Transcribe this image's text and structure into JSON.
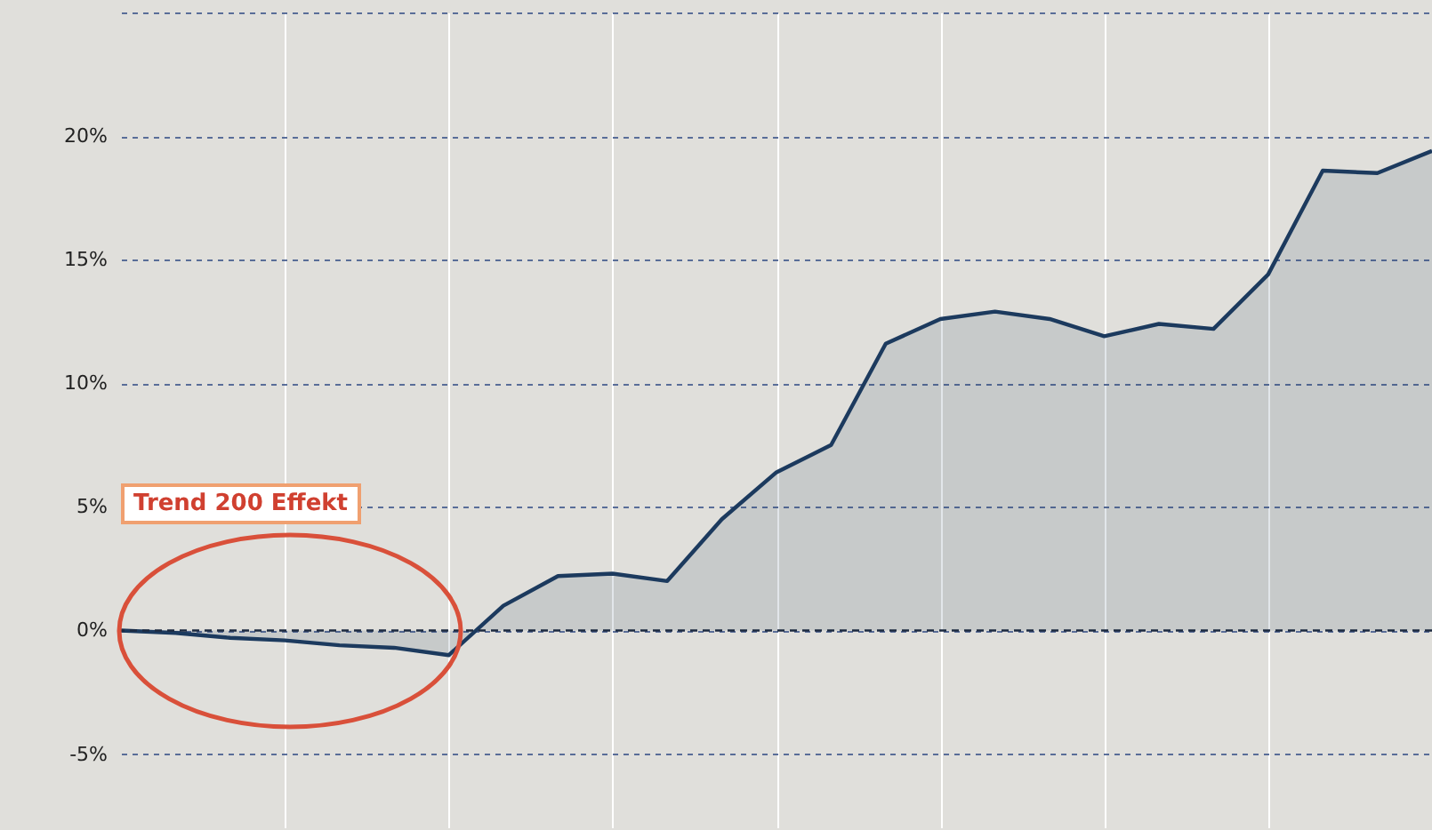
{
  "chart_data": {
    "type": "area",
    "categories": [
      null,
      null,
      null,
      null,
      null,
      null,
      null,
      null,
      null,
      null,
      null,
      null,
      null,
      null,
      null,
      null,
      null,
      null,
      null,
      null,
      null,
      null,
      null,
      null,
      null
    ],
    "series": [
      {
        "color": "#1c3a5e",
        "values": [
          0,
          -0.1,
          -0.3,
          -0.4,
          -0.6,
          -0.7,
          -1.0,
          1.0,
          2.2,
          2.3,
          2.0,
          4.5,
          6.4,
          7.5,
          11.6,
          12.6,
          12.9,
          12.6,
          11.9,
          12.4,
          12.2,
          14.4,
          18.6,
          18.5,
          19.4
        ]
      }
    ],
    "ylim": [
      -8,
      25
    ],
    "yticks": [
      {
        "value": -5,
        "label": "-5%"
      },
      {
        "value": 0,
        "label": "0%"
      },
      {
        "value": 5,
        "label": "5%"
      },
      {
        "value": 10,
        "label": "10%"
      },
      {
        "value": 15,
        "label": "15%"
      },
      {
        "value": 20,
        "label": "20%"
      },
      {
        "value": 25,
        "label": null
      }
    ],
    "ref_lines": [
      {
        "axis": "y",
        "value": 0,
        "color": "#1c2a40",
        "line_style": "dashed"
      }
    ],
    "annotations": [
      "Trend 200 Effekt"
    ],
    "grid": true,
    "tick_labels": "y"
  }
}
